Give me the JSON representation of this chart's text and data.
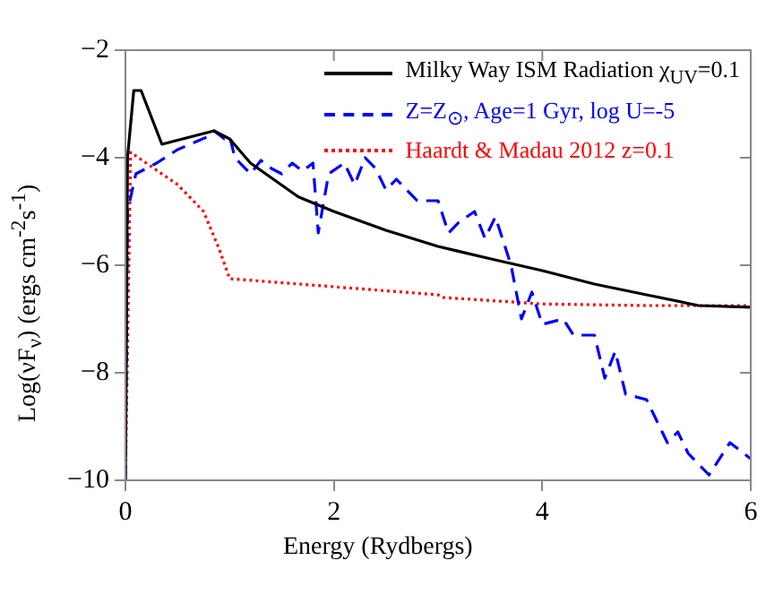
{
  "chart_data": {
    "type": "line",
    "xlabel": "Energy (Rydbergs)",
    "ylabel": "Log(νF$_{ν}$) (ergs cm$^{-2}$s$^{-1}$)",
    "xlim": [
      0,
      6
    ],
    "ylim": [
      -10,
      -2
    ],
    "xticks": [
      0,
      2,
      4,
      6
    ],
    "yticks": [
      -10,
      -8,
      -6,
      -4,
      -2
    ],
    "grid": false,
    "legend": "top right",
    "marker": "none",
    "series": [
      {
        "name": "Milky Way ISM Radiation χ$_{UV}$=0.1",
        "color": "#000000",
        "line_style": "solid",
        "x": [
          0,
          0.02,
          0.08,
          0.15,
          0.35,
          0.85,
          1.0,
          1.2,
          1.66,
          2.0,
          2.5,
          3.0,
          3.5,
          4.0,
          4.5,
          5.0,
          5.5,
          6.0
        ],
        "values": [
          -10,
          -4.0,
          -2.75,
          -2.75,
          -3.75,
          -3.5,
          -3.65,
          -4.1,
          -4.73,
          -5.0,
          -5.35,
          -5.65,
          -5.88,
          -6.1,
          -6.35,
          -6.55,
          -6.75,
          -6.78
        ]
      },
      {
        "name": "Z=Z$_{⊙}$, Age=1 Gyr, log U=-5",
        "color": "#0000ff",
        "line_style": "dashed",
        "x": [
          0,
          0.02,
          0.1,
          0.3,
          0.5,
          0.8,
          0.85,
          0.95,
          1.0,
          1.05,
          1.1,
          1.2,
          1.3,
          1.4,
          1.5,
          1.6,
          1.7,
          1.8,
          1.85,
          1.95,
          2.1,
          2.2,
          2.3,
          2.4,
          2.5,
          2.6,
          2.8,
          3.0,
          3.1,
          3.2,
          3.35,
          3.45,
          3.55,
          3.7,
          3.8,
          3.9,
          4.0,
          4.2,
          4.3,
          4.5,
          4.6,
          4.7,
          4.8,
          5.0,
          5.2,
          5.3,
          5.4,
          5.6,
          5.8,
          6.0
        ],
        "values": [
          -10,
          -5.0,
          -4.3,
          -4.1,
          -3.85,
          -3.6,
          -3.5,
          -3.65,
          -3.6,
          -4.0,
          -4.1,
          -4.3,
          -4.05,
          -4.2,
          -4.3,
          -4.1,
          -4.25,
          -4.1,
          -5.4,
          -4.3,
          -4.1,
          -4.5,
          -4.0,
          -4.2,
          -4.6,
          -4.4,
          -4.8,
          -4.8,
          -5.4,
          -5.2,
          -5.0,
          -5.5,
          -5.1,
          -6.0,
          -7.0,
          -6.5,
          -7.1,
          -7.0,
          -7.3,
          -7.3,
          -8.1,
          -7.6,
          -8.4,
          -8.5,
          -9.3,
          -9.1,
          -9.5,
          -9.9,
          -9.3,
          -9.6
        ]
      },
      {
        "name": "Haardt & Madau 2012 z=0.1",
        "color": "#ff0000",
        "line_style": "dotted",
        "x": [
          0,
          0.05,
          0.2,
          0.5,
          0.75,
          0.9,
          1.0,
          2.0,
          3.0,
          3.05,
          4.0,
          5.0,
          6.0
        ],
        "values": [
          -10,
          -3.9,
          -4.1,
          -4.5,
          -5.0,
          -5.7,
          -6.25,
          -6.4,
          -6.55,
          -6.6,
          -6.72,
          -6.75,
          -6.75
        ]
      }
    ]
  }
}
